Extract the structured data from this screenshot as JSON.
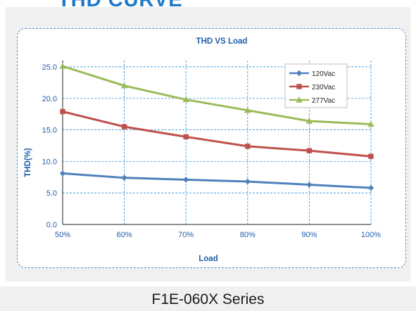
{
  "page": {
    "heading": "THD CURVE",
    "caption": "F1E-060X Series"
  },
  "chart_data": {
    "type": "line",
    "title": "THD VS  Load",
    "xlabel": "Load",
    "ylabel": "THD(%)",
    "categories": [
      "50%",
      "60%",
      "70%",
      "80%",
      "90%",
      "100%"
    ],
    "y_ticks": [
      "0.0",
      "5.0",
      "10.0",
      "15.0",
      "20.0",
      "25.0"
    ],
    "ylim": [
      0,
      26
    ],
    "grid": true,
    "legend_position": "top-right",
    "series": [
      {
        "name": "120Vac",
        "color": "#4f81bd",
        "marker": "diamond",
        "values": [
          8.1,
          7.4,
          7.1,
          6.8,
          6.3,
          5.8
        ]
      },
      {
        "name": "230Vac",
        "color": "#c0504d",
        "marker": "square",
        "values": [
          17.9,
          15.5,
          13.9,
          12.4,
          11.7,
          10.8
        ]
      },
      {
        "name": "277Vac",
        "color": "#9bbb59",
        "marker": "triangle",
        "values": [
          25.1,
          22.0,
          19.8,
          18.1,
          16.4,
          15.9
        ]
      }
    ]
  },
  "colors": {
    "heading": "#1f78c8",
    "axis_text": "#1f5fa8",
    "grid": "#2f8fd8",
    "box_border": "#4a90d0"
  }
}
